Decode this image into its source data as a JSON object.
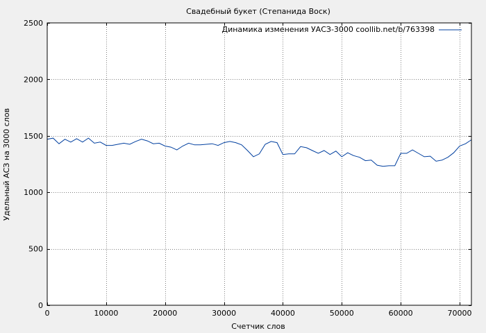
{
  "chart_data": {
    "type": "line",
    "title": "Свадебный букет (Степанида Воск)",
    "xlabel": "Счетчик слов",
    "ylabel": "Удельный АСЗ на 3000 слов",
    "xlim": [
      0,
      72000
    ],
    "ylim": [
      0,
      2500
    ],
    "xticks": [
      0,
      10000,
      20000,
      30000,
      40000,
      50000,
      60000,
      70000
    ],
    "xtick_labels": [
      "0",
      "10000",
      "20000",
      "30000",
      "40000",
      "50000",
      "60000",
      "70000"
    ],
    "yticks": [
      0,
      500,
      1000,
      1500,
      2000,
      2500
    ],
    "ytick_labels": [
      "0",
      "500",
      "1000",
      "1500",
      "2000",
      "2500"
    ],
    "grid": true,
    "legend_position": "top-right",
    "series": [
      {
        "name": "Динамика изменения УАСЗ-3000 coollib.net/b/763398",
        "color": "#003f9f",
        "x": [
          0,
          1000,
          2000,
          3000,
          4000,
          5000,
          6000,
          7000,
          8000,
          9000,
          10000,
          11000,
          12000,
          13000,
          14000,
          15000,
          16000,
          17000,
          18000,
          19000,
          20000,
          21000,
          22000,
          23000,
          24000,
          25000,
          26000,
          27000,
          28000,
          29000,
          30000,
          31000,
          32000,
          33000,
          34000,
          35000,
          36000,
          37000,
          38000,
          39000,
          40000,
          41000,
          42000,
          43000,
          44000,
          45000,
          46000,
          47000,
          48000,
          49000,
          50000,
          51000,
          52000,
          53000,
          54000,
          55000,
          56000,
          57000,
          58000,
          59000,
          60000,
          61000,
          62000,
          63000,
          64000,
          65000,
          66000,
          67000,
          68000,
          69000,
          70000,
          71000,
          72000
        ],
        "y": [
          1470,
          1480,
          1430,
          1470,
          1445,
          1475,
          1445,
          1480,
          1435,
          1445,
          1415,
          1415,
          1425,
          1435,
          1425,
          1450,
          1470,
          1455,
          1430,
          1435,
          1410,
          1400,
          1375,
          1410,
          1435,
          1420,
          1420,
          1425,
          1430,
          1415,
          1440,
          1450,
          1440,
          1420,
          1370,
          1315,
          1340,
          1425,
          1450,
          1440,
          1335,
          1340,
          1340,
          1405,
          1395,
          1370,
          1345,
          1370,
          1335,
          1365,
          1315,
          1350,
          1325,
          1310,
          1280,
          1285,
          1240,
          1230,
          1235,
          1235,
          1345,
          1345,
          1375,
          1345,
          1315,
          1320,
          1275,
          1285,
          1310,
          1350,
          1410,
          1430,
          1465
        ]
      }
    ]
  }
}
